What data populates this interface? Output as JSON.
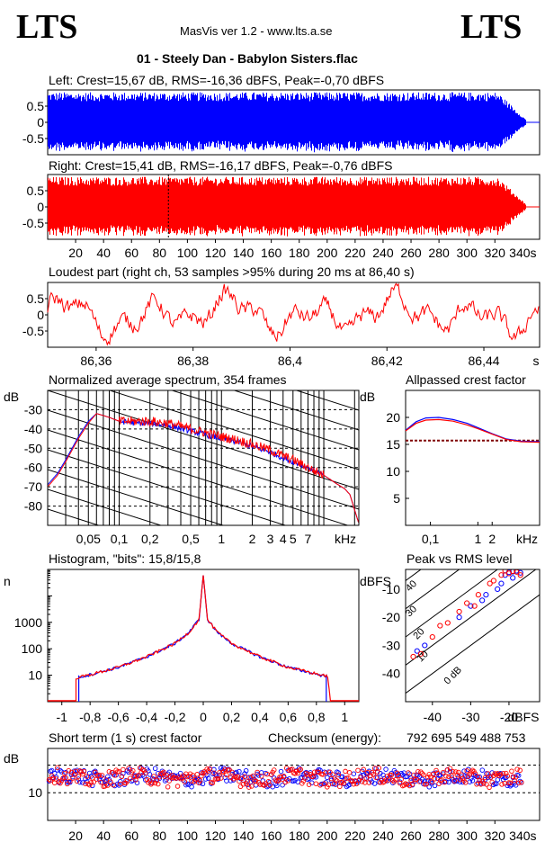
{
  "header": {
    "logo_left": "LTS",
    "logo_right": "LTS",
    "version": "MasVis ver 1.2 - www.lts.a.se",
    "track": "01 - Steely Dan - Babylon Sisters.flac"
  },
  "colors": {
    "left": "#0000ff",
    "right": "#ff0000"
  },
  "chart_data": [
    {
      "type": "area",
      "id": "left_waveform",
      "title": "Left: Crest=15,67 dB, RMS=-16,36 dBFS, Peak=-0,70 dBFS",
      "yticks": [
        "0.5",
        "0",
        "-0.5"
      ],
      "ylim": [
        -1,
        1
      ],
      "xlim": [
        0,
        352
      ],
      "envelope_peak": 0.93,
      "fade_out_start_s": 322,
      "end_s": 340
    },
    {
      "type": "area",
      "id": "right_waveform",
      "title": "Right: Crest=15,41 dB, RMS=-16,17 dBFS, Peak=-0,76 dBFS",
      "yticks": [
        "0.5",
        "0",
        "-0.5"
      ],
      "ylim": [
        -1,
        1
      ],
      "xlim": [
        0,
        352
      ],
      "xticks": [
        20,
        40,
        60,
        80,
        100,
        120,
        140,
        160,
        180,
        200,
        220,
        240,
        260,
        280,
        300,
        320
      ],
      "xunit": "340s",
      "marker_s": 86.4,
      "envelope_peak": 0.93,
      "fade_out_start_s": 322,
      "end_s": 340
    },
    {
      "type": "line",
      "id": "loudest_part",
      "title": "Loudest part (right ch, 53 samples >95% during 20 ms at 86,40 s)",
      "yticks": [
        "0.5",
        "0",
        "-0.5"
      ],
      "ylim": [
        -1,
        1
      ],
      "xlim": [
        86.35,
        86.4515
      ],
      "xticks": [
        "86,36",
        "86,38",
        "86,4",
        "86,42",
        "86,44"
      ],
      "xtick_values": [
        86.36,
        86.38,
        86.4,
        86.42,
        86.44
      ],
      "xunit": "s"
    },
    {
      "type": "line",
      "id": "average_spectrum",
      "title": "Normalized average spectrum, 354 frames",
      "ylabel": "dB",
      "yticks": [
        "-30",
        "-40",
        "-50",
        "-60",
        "-70",
        "-80"
      ],
      "ytick_values": [
        -30,
        -40,
        -50,
        -60,
        -70,
        -80
      ],
      "ylim": [
        -90,
        -20
      ],
      "xticks": [
        "0,05",
        "0,1",
        "0,2",
        "0,5",
        "1",
        "2",
        "3",
        "4",
        "5",
        "7"
      ],
      "xtick_values": [
        0.05,
        0.1,
        0.2,
        0.5,
        1,
        2,
        3,
        4,
        5,
        7
      ],
      "xunit": "kHz",
      "xlim": [
        0.02,
        22
      ],
      "series": [
        {
          "color": "#0000ff",
          "points": [
            [
              0.02,
              -69
            ],
            [
              0.025,
              -63
            ],
            [
              0.03,
              -56
            ],
            [
              0.04,
              -44
            ],
            [
              0.05,
              -36
            ],
            [
              0.06,
              -32
            ],
            [
              0.07,
              -33
            ],
            [
              0.08,
              -34
            ],
            [
              0.1,
              -36
            ],
            [
              0.15,
              -37
            ],
            [
              0.2,
              -37
            ],
            [
              0.3,
              -38
            ],
            [
              0.5,
              -41
            ],
            [
              0.7,
              -43
            ],
            [
              1,
              -45
            ],
            [
              1.5,
              -47
            ],
            [
              2,
              -49
            ],
            [
              3,
              -52
            ],
            [
              4,
              -55
            ],
            [
              5,
              -57
            ],
            [
              7,
              -60
            ],
            [
              10,
              -64
            ],
            [
              13,
              -68
            ],
            [
              16,
              -71
            ],
            [
              18,
              -74
            ],
            [
              20,
              -82
            ],
            [
              22,
              -89
            ]
          ]
        },
        {
          "color": "#ff0000",
          "points": [
            [
              0.02,
              -70
            ],
            [
              0.025,
              -64
            ],
            [
              0.03,
              -57
            ],
            [
              0.04,
              -45
            ],
            [
              0.05,
              -37
            ],
            [
              0.06,
              -32
            ],
            [
              0.07,
              -33
            ],
            [
              0.08,
              -34
            ],
            [
              0.1,
              -36
            ],
            [
              0.15,
              -36
            ],
            [
              0.2,
              -36
            ],
            [
              0.3,
              -37
            ],
            [
              0.5,
              -40
            ],
            [
              0.7,
              -42
            ],
            [
              1,
              -44
            ],
            [
              1.5,
              -46
            ],
            [
              2,
              -48
            ],
            [
              3,
              -51
            ],
            [
              4,
              -54
            ],
            [
              5,
              -56
            ],
            [
              7,
              -60
            ],
            [
              10,
              -64
            ],
            [
              13,
              -68
            ],
            [
              16,
              -71
            ],
            [
              18,
              -74
            ],
            [
              20,
              -82
            ],
            [
              22,
              -89
            ]
          ]
        }
      ]
    },
    {
      "type": "line",
      "id": "allpassed_crest",
      "title": "Allpassed crest factor",
      "ylabel": "dB",
      "yticks": [
        "20",
        "15",
        "10",
        "5"
      ],
      "ytick_values": [
        20,
        15,
        10,
        5
      ],
      "ylim": [
        0,
        25
      ],
      "xticks": [
        "0,1",
        "1",
        "2"
      ],
      "xtick_values": [
        0.1,
        1,
        2
      ],
      "xunit": "kHz",
      "xlim": [
        0.03,
        20
      ],
      "reference_line_db": 15.7,
      "series": [
        {
          "color": "#0000ff",
          "points": [
            [
              0.03,
              17.6
            ],
            [
              0.05,
              19.2
            ],
            [
              0.08,
              19.9
            ],
            [
              0.15,
              20.0
            ],
            [
              0.3,
              19.6
            ],
            [
              0.6,
              18.9
            ],
            [
              1,
              18.1
            ],
            [
              2,
              17.0
            ],
            [
              4,
              16.0
            ],
            [
              8,
              15.6
            ],
            [
              20,
              15.5
            ]
          ]
        },
        {
          "color": "#ff0000",
          "points": [
            [
              0.03,
              17.5
            ],
            [
              0.05,
              18.9
            ],
            [
              0.08,
              19.5
            ],
            [
              0.15,
              19.6
            ],
            [
              0.3,
              19.3
            ],
            [
              0.6,
              18.6
            ],
            [
              1,
              17.9
            ],
            [
              2,
              16.9
            ],
            [
              4,
              15.9
            ],
            [
              8,
              15.5
            ],
            [
              20,
              15.4
            ]
          ]
        }
      ]
    },
    {
      "type": "line",
      "id": "histogram",
      "title": "Histogram, \"bits\": 15,8/15,8",
      "ylabel": "n",
      "yticks": [
        "1000",
        "100",
        "10"
      ],
      "ytick_values": [
        1000,
        100,
        10
      ],
      "ylim": [
        1,
        100000
      ],
      "xticks": [
        "-1",
        "-0,8",
        "-0,6",
        "-0,4",
        "-0,2",
        "0",
        "0,2",
        "0,4",
        "0,6",
        "0,8",
        "1"
      ],
      "xtick_values": [
        -1,
        -0.8,
        -0.6,
        -0.4,
        -0.2,
        0,
        0.2,
        0.4,
        0.6,
        0.8,
        1
      ],
      "xlim": [
        -1.1,
        1.1
      ],
      "series": [
        {
          "color": "#0000ff",
          "points": [
            [
              -0.88,
              1
            ],
            [
              -0.88,
              9
            ],
            [
              -0.85,
              9
            ],
            [
              -0.6,
              20
            ],
            [
              -0.4,
              50
            ],
            [
              -0.2,
              160
            ],
            [
              -0.1,
              420
            ],
            [
              -0.03,
              1300
            ],
            [
              0,
              60000
            ],
            [
              0.03,
              1300
            ],
            [
              0.1,
              420
            ],
            [
              0.2,
              160
            ],
            [
              0.4,
              50
            ],
            [
              0.6,
              20
            ],
            [
              0.87,
              9
            ],
            [
              0.87,
              1
            ]
          ]
        },
        {
          "color": "#ff0000",
          "points": [
            [
              -0.9,
              1
            ],
            [
              -0.9,
              8
            ],
            [
              -0.85,
              9
            ],
            [
              -0.6,
              20
            ],
            [
              -0.4,
              50
            ],
            [
              -0.2,
              160
            ],
            [
              -0.1,
              420
            ],
            [
              -0.03,
              1300
            ],
            [
              0,
              60000
            ],
            [
              0.03,
              1300
            ],
            [
              0.1,
              420
            ],
            [
              0.2,
              160
            ],
            [
              0.4,
              50
            ],
            [
              0.6,
              20
            ],
            [
              0.88,
              9
            ],
            [
              0.9,
              1
            ]
          ]
        }
      ]
    },
    {
      "type": "scatter",
      "id": "peak_vs_rms",
      "title": "Peak vs RMS level",
      "ylabel": "dBFS",
      "xlabel": "dBFS",
      "yticks": [
        "-10",
        "-20",
        "-30",
        "-40"
      ],
      "ytick_values": [
        -10,
        -20,
        -30,
        -40
      ],
      "xticks": [
        "-40",
        "-30",
        "-20"
      ],
      "xtick_values": [
        -40,
        -30,
        -20
      ],
      "xlim": [
        -47,
        -12
      ],
      "ylim": [
        -50,
        -3
      ],
      "crest_lines": [
        "40",
        "30",
        "20",
        "10",
        "0 dB"
      ],
      "crest_line_values": [
        40,
        30,
        20,
        10,
        0
      ],
      "series": [
        {
          "color": "#0000ff",
          "points": [
            [
              -19,
              -3.8
            ],
            [
              -18,
              -3.5
            ],
            [
              -20,
              -4
            ],
            [
              -17,
              -4.2
            ],
            [
              -21,
              -5
            ],
            [
              -19,
              -6
            ],
            [
              -22,
              -8
            ],
            [
              -23,
              -10
            ],
            [
              -26,
              -12
            ],
            [
              -30,
              -16
            ],
            [
              -33,
              -20
            ],
            [
              -42,
              -30
            ],
            [
              -44,
              -32
            ],
            [
              -27,
              -14
            ]
          ]
        },
        {
          "color": "#ff0000",
          "points": [
            [
              -19,
              -3.6
            ],
            [
              -18,
              -3.9
            ],
            [
              -20,
              -4.4
            ],
            [
              -21,
              -3.5
            ],
            [
              -22,
              -5
            ],
            [
              -17,
              -5
            ],
            [
              -24,
              -7
            ],
            [
              -25,
              -8
            ],
            [
              -28,
              -12
            ],
            [
              -31,
              -15
            ],
            [
              -33,
              -18
            ],
            [
              -36,
              -22
            ],
            [
              -38,
              -23
            ],
            [
              -40,
              -27
            ],
            [
              -43,
              -33
            ],
            [
              -45,
              -34
            ],
            [
              -29,
              -16
            ]
          ]
        }
      ]
    },
    {
      "type": "scatter",
      "id": "short_term_crest",
      "title": "Short term (1 s) crest factor",
      "ylabel": "dB",
      "yticks": [
        "10"
      ],
      "ytick_values": [
        10
      ],
      "ylim": [
        0,
        26
      ],
      "dashed_lines_db": [
        10,
        20
      ],
      "xticks": [
        20,
        40,
        60,
        80,
        100,
        120,
        140,
        160,
        180,
        200,
        220,
        240,
        260,
        280,
        300,
        320
      ],
      "xunit": "340s",
      "xlim": [
        0,
        352
      ],
      "mean_db": 15.5,
      "spread_db": 2.8
    }
  ],
  "checksum": {
    "label": "Checksum (energy):",
    "value": "792 695 549 488 753"
  }
}
